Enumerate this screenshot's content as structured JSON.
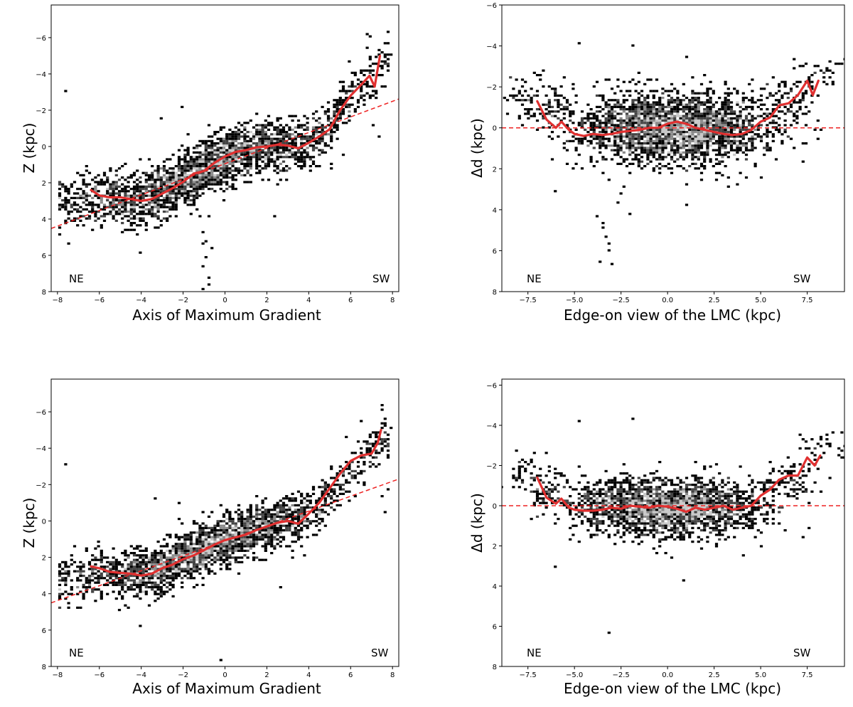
{
  "chart_data": [
    {
      "id": "p1",
      "type": "scatter",
      "title": "",
      "xlabel": "Axis of Maximum Gradient",
      "ylabel": "Z (kpc)",
      "xlim": [
        -8.3,
        8.3
      ],
      "ylim": [
        8,
        -7.8
      ],
      "xticks": [
        -8,
        -6,
        -4,
        -2,
        0,
        2,
        4,
        6,
        8
      ],
      "xtick_labels": [
        "−8",
        "−6",
        "−4",
        "−2",
        "0",
        "2",
        "4",
        "6",
        "8"
      ],
      "yticks": [
        -6,
        -4,
        -2,
        0,
        2,
        4,
        6,
        8
      ],
      "ytick_labels": [
        "−6",
        "−4",
        "−2",
        "0",
        "2",
        "4",
        "6",
        "8"
      ],
      "labels": {
        "left": "NE",
        "right": "SW"
      },
      "fit_line": {
        "slope": -0.43,
        "intercept": 0.95,
        "color": "#ee2222"
      },
      "median_trend": {
        "x": [
          -6.4,
          -6.0,
          -5.5,
          -5.0,
          -4.5,
          -4.0,
          -3.5,
          -3.0,
          -2.5,
          -2.0,
          -1.5,
          -1.0,
          -0.5,
          0.0,
          0.5,
          1.0,
          1.5,
          2.0,
          2.5,
          3.0,
          3.5,
          4.0,
          4.5,
          5.0,
          5.5,
          6.0,
          6.5,
          6.9,
          7.15,
          7.4
        ],
        "y": [
          2.4,
          2.7,
          2.8,
          2.8,
          2.9,
          3.0,
          2.9,
          2.6,
          2.3,
          1.95,
          1.5,
          1.35,
          0.9,
          0.55,
          0.3,
          0.2,
          0.05,
          0.0,
          -0.1,
          -0.05,
          0.1,
          -0.2,
          -0.55,
          -0.95,
          -2.0,
          -2.8,
          -3.4,
          -3.9,
          -3.3,
          -5.0
        ],
        "color": "#e03030"
      },
      "scatter": {
        "type": "trend",
        "seed": 11,
        "n": 2600,
        "x_range": [
          -7.9,
          7.8
        ],
        "spread": 0.75,
        "trend_x": [
          -8,
          -6,
          -4,
          -2,
          0,
          2,
          4,
          5,
          6,
          7,
          8
        ],
        "trend_y": [
          3.2,
          2.8,
          3.0,
          1.9,
          0.55,
          0.0,
          -0.2,
          -1.0,
          -2.8,
          -3.8,
          -4.9
        ],
        "outliers": [
          [
            -7.6,
            -3.1
          ],
          [
            -7.9,
            4.8
          ],
          [
            -4.1,
            5.8
          ],
          [
            -1.0,
            4.7
          ],
          [
            -0.9,
            5.2
          ],
          [
            -0.9,
            6.1
          ],
          [
            -1.0,
            6.6
          ],
          [
            -0.8,
            7.2
          ],
          [
            -1.0,
            7.9
          ],
          [
            -0.6,
            5.6
          ],
          [
            -1.1,
            5.4
          ],
          [
            -0.7,
            7.6
          ],
          [
            2.4,
            3.8
          ],
          [
            -3.0,
            -1.6
          ],
          [
            -2.1,
            -2.2
          ],
          [
            7.4,
            -0.5
          ],
          [
            7.1,
            -1.2
          ],
          [
            7.6,
            -5.7
          ],
          [
            7.9,
            -5.1
          ],
          [
            7.5,
            -5.2
          ]
        ]
      }
    },
    {
      "id": "p2",
      "type": "scatter",
      "title": "",
      "xlabel": "Edge-on view of the LMC (kpc)",
      "ylabel": "Δd (kpc)",
      "xlim": [
        -8.9,
        9.5
      ],
      "ylim": [
        8,
        -6
      ],
      "xticks": [
        -7.5,
        -5.0,
        -2.5,
        0.0,
        2.5,
        5.0,
        7.5
      ],
      "xtick_labels": [
        "−7.5",
        "−5.0",
        "−2.5",
        "0.0",
        "2.5",
        "5.0",
        "7.5"
      ],
      "yticks": [
        -6,
        -4,
        -2,
        0,
        2,
        4,
        6,
        8
      ],
      "ytick_labels": [
        "−6",
        "−4",
        "−2",
        "0",
        "2",
        "4",
        "6",
        "8"
      ],
      "labels": {
        "left": "NE",
        "right": "SW"
      },
      "fit_line": {
        "slope": 0,
        "intercept": 0,
        "color": "#ee2222"
      },
      "median_trend": {
        "x": [
          -7.0,
          -6.5,
          -6.0,
          -5.7,
          -5.3,
          -5.0,
          -4.5,
          -4.0,
          -3.5,
          -3.0,
          -2.5,
          -2.0,
          -1.5,
          -1.0,
          -0.5,
          0.0,
          0.5,
          1.0,
          1.5,
          2.0,
          2.5,
          3.0,
          3.5,
          4.0,
          4.5,
          5.0,
          5.5,
          6.0,
          6.5,
          7.0,
          7.5,
          7.8,
          8.1
        ],
        "y": [
          -1.3,
          -0.4,
          0.0,
          -0.3,
          0.1,
          0.3,
          0.4,
          0.3,
          0.35,
          0.3,
          0.2,
          0.15,
          0.1,
          0.0,
          0.0,
          -0.2,
          -0.3,
          -0.2,
          0.0,
          0.1,
          0.2,
          0.3,
          0.35,
          0.3,
          0.1,
          -0.3,
          -0.5,
          -1.1,
          -1.2,
          -1.6,
          -2.3,
          -1.6,
          -2.3
        ],
        "color": "#e03030"
      },
      "scatter": {
        "type": "blob",
        "seed": 23,
        "n": 2600,
        "cx": 0.3,
        "sx": 2.7,
        "core_y": 0.0,
        "sy": 0.85,
        "wings": [
          [
            -7.7,
            -1.5,
            0.6,
            0.45,
            40
          ],
          [
            8.3,
            -2.6,
            0.7,
            0.45,
            30
          ],
          [
            -6.5,
            -0.8,
            0.6,
            0.5,
            50
          ],
          [
            6.7,
            -1.4,
            0.6,
            0.5,
            50
          ]
        ],
        "outliers": [
          [
            -3.8,
            4.3
          ],
          [
            -3.5,
            4.6
          ],
          [
            -3.4,
            4.9
          ],
          [
            -3.3,
            5.3
          ],
          [
            -3.1,
            5.6
          ],
          [
            -3.2,
            6.0
          ],
          [
            -3.6,
            6.5
          ],
          [
            -3.0,
            6.6
          ],
          [
            -2.7,
            3.7
          ],
          [
            -2.5,
            3.2
          ],
          [
            -2.3,
            2.9
          ],
          [
            -2.1,
            4.2
          ],
          [
            -6.1,
            3.1
          ],
          [
            1.0,
            3.8
          ],
          [
            -4.8,
            -4.1
          ],
          [
            -1.8,
            -4.0
          ],
          [
            1.1,
            -3.5
          ],
          [
            8.8,
            -2.8
          ],
          [
            9.3,
            -3.1
          ],
          [
            7.5,
            0.8
          ],
          [
            7.2,
            1.7
          ]
        ]
      }
    },
    {
      "id": "p3",
      "type": "scatter",
      "title": "",
      "xlabel": "Axis of Maximum Gradient",
      "ylabel": "Z (kpc)",
      "xlim": [
        -8.3,
        8.3
      ],
      "ylim": [
        8,
        -7.8
      ],
      "xticks": [
        -8,
        -6,
        -4,
        -2,
        0,
        2,
        4,
        6,
        8
      ],
      "xtick_labels": [
        "−8",
        "−6",
        "−4",
        "−2",
        "0",
        "2",
        "4",
        "6",
        "8"
      ],
      "yticks": [
        -6,
        -4,
        -2,
        0,
        2,
        4,
        6,
        8
      ],
      "ytick_labels": [
        "−6",
        "−4",
        "−2",
        "0",
        "2",
        "4",
        "6",
        "8"
      ],
      "labels": {
        "left": "NE",
        "right": "SW"
      },
      "fit_line": {
        "slope": -0.41,
        "intercept": 1.1,
        "color": "#ee2222"
      },
      "median_trend": {
        "x": [
          -6.4,
          -6.0,
          -5.5,
          -5.0,
          -4.5,
          -4.0,
          -3.5,
          -3.0,
          -2.5,
          -2.0,
          -1.5,
          -1.0,
          -0.5,
          0.0,
          0.5,
          1.0,
          1.5,
          2.0,
          2.5,
          3.0,
          3.5,
          4.0,
          4.5,
          5.0,
          5.5,
          6.0,
          6.5,
          7.0,
          7.3,
          7.45
        ],
        "y": [
          2.5,
          2.6,
          2.8,
          2.85,
          2.9,
          3.0,
          2.9,
          2.6,
          2.4,
          2.1,
          1.9,
          1.6,
          1.3,
          1.05,
          0.9,
          0.75,
          0.5,
          0.3,
          0.1,
          0.0,
          0.15,
          -0.4,
          -1.0,
          -1.8,
          -2.6,
          -3.3,
          -3.6,
          -3.7,
          -4.3,
          -5.0
        ],
        "color": "#e03030"
      },
      "scatter": {
        "type": "trend",
        "seed": 37,
        "n": 2400,
        "x_range": [
          -7.9,
          7.8
        ],
        "spread": 0.7,
        "trend_x": [
          -8,
          -6,
          -4,
          -2,
          0,
          2,
          4,
          5,
          6,
          7,
          8
        ],
        "trend_y": [
          3.3,
          2.7,
          3.0,
          2.0,
          1.0,
          0.3,
          -0.3,
          -1.4,
          -2.8,
          -3.8,
          -5.0
        ],
        "outliers": [
          [
            -7.6,
            -3.1
          ],
          [
            -7.9,
            4.8
          ],
          [
            -4.1,
            5.8
          ],
          [
            -0.2,
            7.6
          ],
          [
            2.6,
            3.6
          ],
          [
            -3.3,
            -1.3
          ],
          [
            -2.2,
            -1.0
          ],
          [
            7.5,
            -1.4
          ],
          [
            7.6,
            -0.5
          ],
          [
            7.8,
            -1.8
          ],
          [
            7.7,
            -5.6
          ],
          [
            8.0,
            -5.1
          ],
          [
            7.6,
            -5.2
          ],
          [
            -6.1,
            3.4
          ]
        ]
      }
    },
    {
      "id": "p4",
      "type": "scatter",
      "title": "",
      "xlabel": "Edge-on view of the LMC (kpc)",
      "ylabel": "Δd (kpc)",
      "xlim": [
        -8.9,
        9.5
      ],
      "ylim": [
        8,
        -6.3
      ],
      "xticks": [
        -7.5,
        -5.0,
        -2.5,
        0.0,
        2.5,
        5.0,
        7.5
      ],
      "xtick_labels": [
        "−7.5",
        "−5.0",
        "−2.5",
        "0.0",
        "2.5",
        "5.0",
        "7.5"
      ],
      "yticks": [
        -6,
        -4,
        -2,
        0,
        2,
        4,
        6,
        8
      ],
      "ytick_labels": [
        "−6",
        "−4",
        "−2",
        "0",
        "2",
        "4",
        "6",
        "8"
      ],
      "labels": {
        "left": "NE",
        "right": "SW"
      },
      "fit_line": {
        "slope": 0,
        "intercept": 0,
        "color": "#ee2222"
      },
      "median_trend": {
        "x": [
          -7.0,
          -6.5,
          -6.0,
          -5.7,
          -5.3,
          -5.0,
          -4.5,
          -4.0,
          -3.5,
          -3.0,
          -2.5,
          -2.0,
          -1.5,
          -1.0,
          -0.5,
          0.0,
          0.5,
          1.0,
          1.5,
          2.0,
          2.5,
          3.0,
          3.5,
          4.0,
          4.5,
          5.0,
          5.5,
          6.0,
          6.5,
          7.0,
          7.5,
          7.9,
          8.2
        ],
        "y": [
          -1.4,
          -0.4,
          -0.1,
          -0.35,
          0.1,
          0.2,
          0.25,
          0.25,
          0.2,
          0.1,
          0.15,
          0.0,
          0.05,
          0.1,
          0.0,
          0.05,
          0.15,
          0.3,
          0.1,
          0.2,
          0.1,
          0.0,
          0.2,
          0.1,
          0.0,
          -0.5,
          -0.8,
          -1.3,
          -1.5,
          -1.5,
          -2.4,
          -2.0,
          -2.5
        ],
        "color": "#e03030"
      },
      "scatter": {
        "type": "blob",
        "seed": 51,
        "n": 2300,
        "cx": 0.0,
        "sx": 2.7,
        "core_y": 0.05,
        "sy": 0.7,
        "wings": [
          [
            -7.7,
            -1.6,
            0.6,
            0.45,
            40
          ],
          [
            8.4,
            -2.8,
            0.7,
            0.45,
            30
          ],
          [
            -6.5,
            -0.9,
            0.6,
            0.5,
            50
          ],
          [
            6.8,
            -1.5,
            0.6,
            0.5,
            50
          ]
        ],
        "outliers": [
          [
            -6.1,
            3.0
          ],
          [
            -4.8,
            -4.2
          ],
          [
            -1.8,
            -4.3
          ],
          [
            -3.1,
            6.3
          ],
          [
            0.9,
            3.7
          ],
          [
            -0.1,
            2.4
          ],
          [
            0.3,
            2.6
          ],
          [
            7.2,
            -3.3
          ],
          [
            8.8,
            -3.0
          ],
          [
            9.3,
            -3.6
          ],
          [
            7.6,
            1.1
          ],
          [
            7.3,
            1.6
          ]
        ]
      }
    }
  ]
}
